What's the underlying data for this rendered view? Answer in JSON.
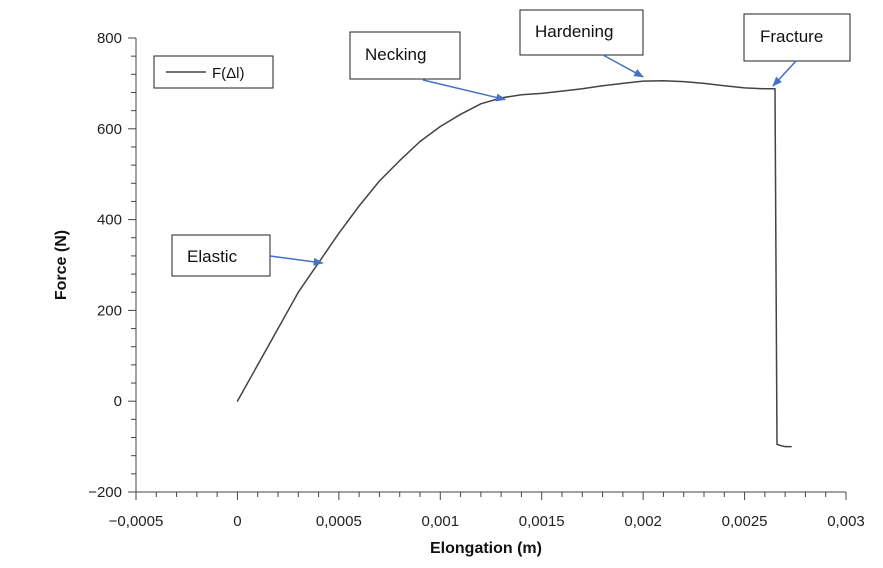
{
  "chart_data": {
    "type": "line",
    "title": "",
    "xlabel": "Elongation (m)",
    "ylabel": "Force (N)",
    "xlim": [
      -0.0005,
      0.003
    ],
    "ylim": [
      -200,
      800
    ],
    "x_ticks": [
      {
        "value": -0.0005,
        "label": "−0,0005"
      },
      {
        "value": 0,
        "label": "0"
      },
      {
        "value": 0.0005,
        "label": "0,0005"
      },
      {
        "value": 0.001,
        "label": "0,001"
      },
      {
        "value": 0.0015,
        "label": "0,0015"
      },
      {
        "value": 0.002,
        "label": "0,002"
      },
      {
        "value": 0.0025,
        "label": "0,0025"
      },
      {
        "value": 0.003,
        "label": "0,003"
      }
    ],
    "y_ticks": [
      {
        "value": -200,
        "label": "−200"
      },
      {
        "value": 0,
        "label": "0"
      },
      {
        "value": 200,
        "label": "200"
      },
      {
        "value": 400,
        "label": "400"
      },
      {
        "value": 600,
        "label": "600"
      },
      {
        "value": 800,
        "label": "800"
      }
    ],
    "grid": false,
    "legend_position": "top-left",
    "series": [
      {
        "name": "F(Δl)",
        "color": "#444444",
        "x": [
          0,
          0.0001,
          0.0002,
          0.0003,
          0.0004,
          0.0005,
          0.0006,
          0.0007,
          0.0008,
          0.0009,
          0.001,
          0.0011,
          0.0012,
          0.0013,
          0.0014,
          0.0015,
          0.0016,
          0.0017,
          0.0018,
          0.0019,
          0.002,
          0.0021,
          0.0022,
          0.0023,
          0.0024,
          0.0025,
          0.0026,
          0.00265,
          0.00266,
          0.00268,
          0.0027,
          0.00273
        ],
        "y": [
          0,
          80,
          160,
          240,
          305,
          370,
          430,
          485,
          530,
          572,
          605,
          632,
          655,
          668,
          675,
          678,
          683,
          688,
          695,
          700,
          705,
          706,
          704,
          700,
          695,
          690,
          688,
          688,
          -95,
          -98,
          -100,
          -100
        ]
      }
    ],
    "annotations": [
      {
        "text": "Elastic",
        "x": 0.00042,
        "y": 300
      },
      {
        "text": "Necking",
        "x": 0.00132,
        "y": 660
      },
      {
        "text": "Hardening",
        "x": 0.002,
        "y": 710
      },
      {
        "text": "Fracture",
        "x": 0.00264,
        "y": 690
      }
    ]
  }
}
